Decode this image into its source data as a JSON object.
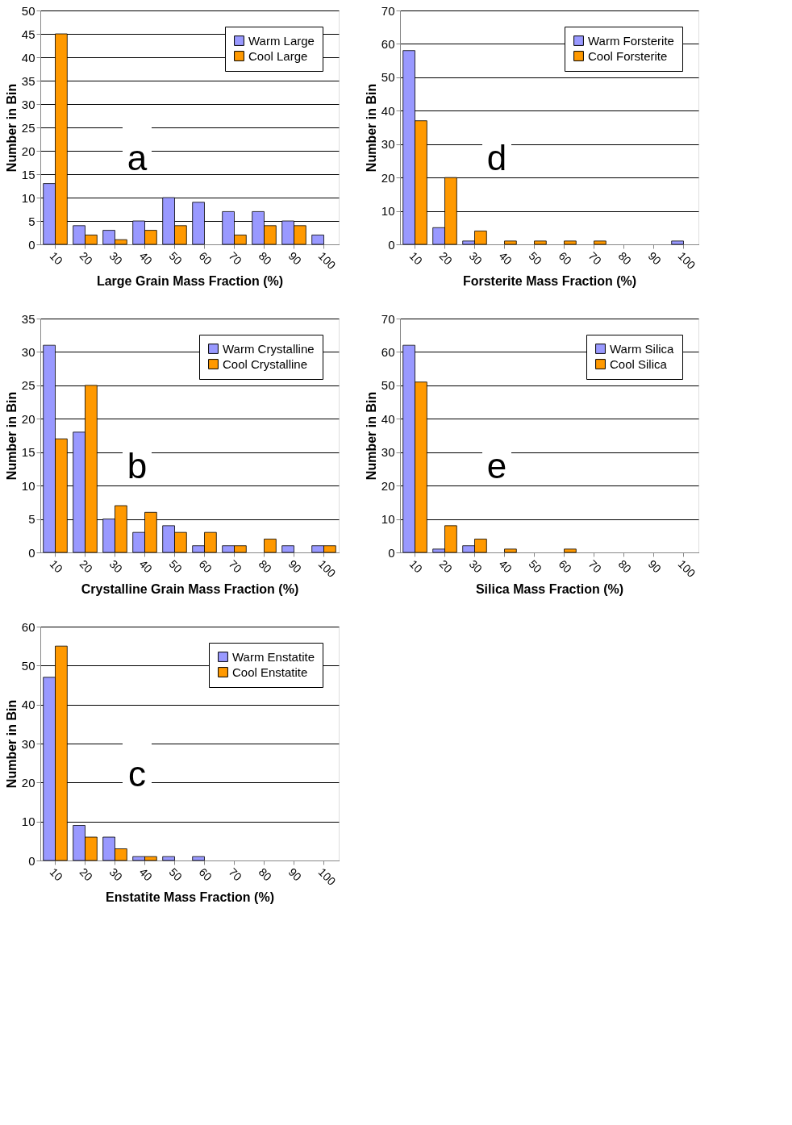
{
  "chart_data": [
    {
      "type": "bar",
      "annotations": [
        "a"
      ],
      "xlabel": "Large Grain Mass Fraction (%)",
      "ylabel": "Number in Bin",
      "categories": [
        "10",
        "20",
        "30",
        "40",
        "50",
        "60",
        "70",
        "80",
        "90",
        "100"
      ],
      "ylim": [
        0,
        50
      ],
      "yticks": [
        0,
        5,
        10,
        15,
        20,
        25,
        30,
        35,
        40,
        45,
        50
      ],
      "grid": "y",
      "legend": "top right",
      "series": [
        {
          "name": "Warm Large",
          "color": "#9999ff",
          "values": [
            13,
            4,
            3,
            5,
            10,
            9,
            7,
            7,
            5,
            2
          ]
        },
        {
          "name": "Cool Large",
          "color": "#ff9900",
          "values": [
            45,
            2,
            1,
            3,
            4,
            0,
            2,
            4,
            4,
            0
          ]
        }
      ]
    },
    {
      "type": "bar",
      "annotations": [
        "d"
      ],
      "xlabel": "Forsterite Mass Fraction (%)",
      "ylabel": "Number in Bin",
      "categories": [
        "10",
        "20",
        "30",
        "40",
        "50",
        "60",
        "70",
        "80",
        "90",
        "100"
      ],
      "ylim": [
        0,
        70
      ],
      "yticks": [
        0,
        10,
        20,
        30,
        40,
        50,
        60,
        70
      ],
      "grid": "y",
      "legend": "top right",
      "series": [
        {
          "name": "Warm Forsterite",
          "color": "#9999ff",
          "values": [
            58,
            5,
            1,
            0,
            0,
            0,
            0,
            0,
            0,
            1
          ]
        },
        {
          "name": "Cool Forsterite",
          "color": "#ff9900",
          "values": [
            37,
            20,
            4,
            1,
            1,
            1,
            1,
            0,
            0,
            0
          ]
        }
      ]
    },
    {
      "type": "bar",
      "annotations": [
        "b"
      ],
      "xlabel": "Crystalline Grain Mass Fraction (%)",
      "ylabel": "Number in Bin",
      "categories": [
        "10",
        "20",
        "30",
        "40",
        "50",
        "60",
        "70",
        "80",
        "90",
        "100"
      ],
      "ylim": [
        0,
        35
      ],
      "yticks": [
        0,
        5,
        10,
        15,
        20,
        25,
        30,
        35
      ],
      "grid": "y",
      "legend": "top right",
      "series": [
        {
          "name": "Warm Crystalline",
          "color": "#9999ff",
          "values": [
            31,
            18,
            5,
            3,
            4,
            1,
            1,
            0,
            1,
            1
          ]
        },
        {
          "name": "Cool Crystalline",
          "color": "#ff9900",
          "values": [
            17,
            25,
            7,
            6,
            3,
            3,
            1,
            2,
            0,
            1
          ]
        }
      ]
    },
    {
      "type": "bar",
      "annotations": [
        "e"
      ],
      "xlabel": "Silica Mass Fraction (%)",
      "ylabel": "Number in Bin",
      "categories": [
        "10",
        "20",
        "30",
        "40",
        "50",
        "60",
        "70",
        "80",
        "90",
        "100"
      ],
      "ylim": [
        0,
        70
      ],
      "yticks": [
        0,
        10,
        20,
        30,
        40,
        50,
        60,
        70
      ],
      "grid": "y",
      "legend": "top right",
      "series": [
        {
          "name": "Warm Silica",
          "color": "#9999ff",
          "values": [
            62,
            1,
            2,
            0,
            0,
            0,
            0,
            0,
            0,
            0
          ]
        },
        {
          "name": "Cool Silica",
          "color": "#ff9900",
          "values": [
            51,
            8,
            4,
            1,
            0,
            1,
            0,
            0,
            0,
            0
          ]
        }
      ]
    },
    {
      "type": "bar",
      "annotations": [
        "c"
      ],
      "xlabel": "Enstatite Mass Fraction (%)",
      "ylabel": "Number in Bin",
      "categories": [
        "10",
        "20",
        "30",
        "40",
        "50",
        "60",
        "70",
        "80",
        "90",
        "100"
      ],
      "ylim": [
        0,
        60
      ],
      "yticks": [
        0,
        10,
        20,
        30,
        40,
        50,
        60
      ],
      "grid": "y",
      "legend": "top right",
      "series": [
        {
          "name": "Warm Enstatite",
          "color": "#9999ff",
          "values": [
            47,
            9,
            6,
            1,
            1,
            1,
            0,
            0,
            0,
            0
          ]
        },
        {
          "name": "Cool Enstatite",
          "color": "#ff9900",
          "values": [
            55,
            6,
            3,
            1,
            0,
            0,
            0,
            0,
            0,
            0
          ]
        }
      ]
    }
  ]
}
